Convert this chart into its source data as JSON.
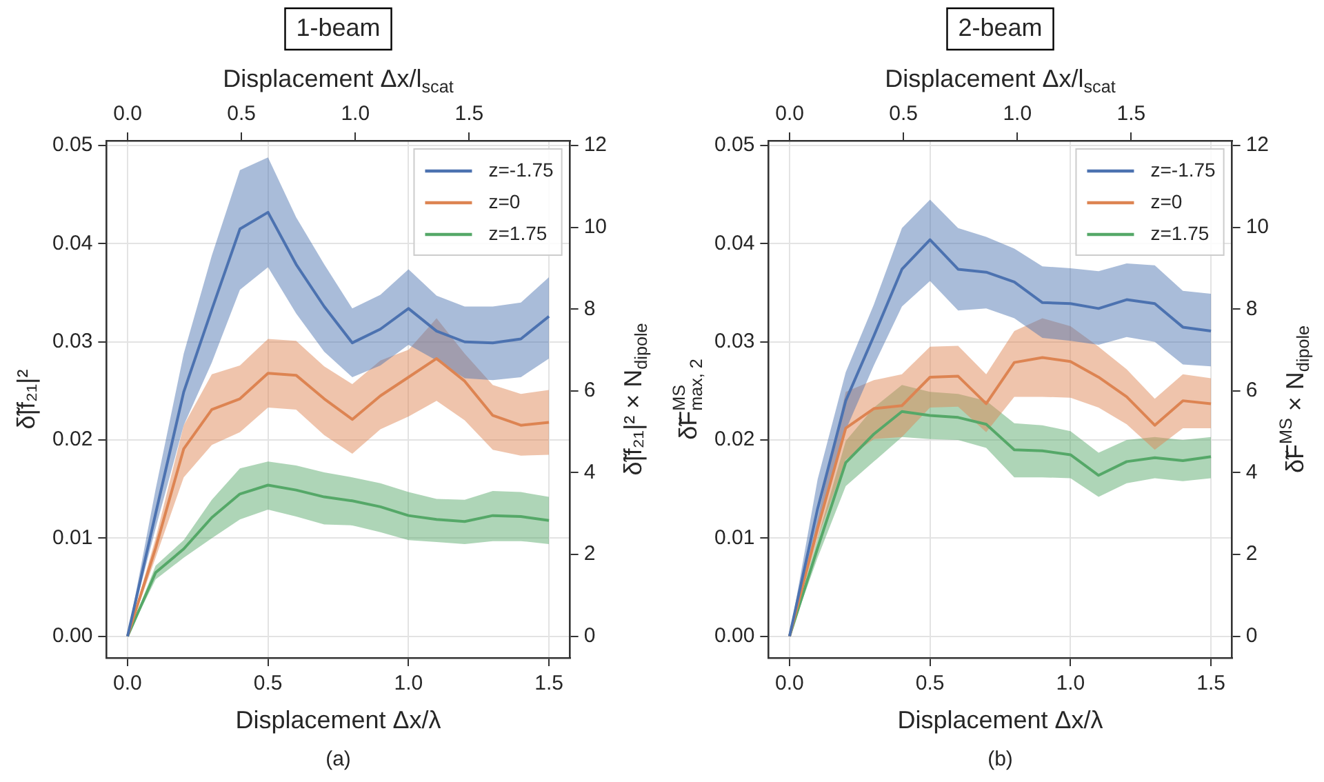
{
  "chart_data": [
    {
      "type": "line",
      "title": "1-beam",
      "xlabel": "Displacement Δx/λ",
      "x2label": "Displacement Δx/l$_{scat}$",
      "ylabel": "δ̃|f₂₁|²",
      "y2label": "δ̃|f₂₁|² × N$_{dipole}$",
      "x": [
        0,
        0.1,
        0.2,
        0.3,
        0.4,
        0.5,
        0.6,
        0.7,
        0.8,
        0.9,
        1.0,
        1.1,
        1.2,
        1.3,
        1.4,
        1.5
      ],
      "series": [
        {
          "name": "z=-1.75",
          "color": "#4c72b0",
          "values": [
            0,
            0.0125,
            0.0249,
            0.0333,
            0.0415,
            0.0432,
            0.0379,
            0.0336,
            0.0299,
            0.0313,
            0.0334,
            0.0311,
            0.03,
            0.0299,
            0.0303,
            0.0326
          ],
          "lower": [
            0,
            0.011,
            0.0215,
            0.0279,
            0.0353,
            0.0376,
            0.0329,
            0.029,
            0.0264,
            0.0276,
            0.0297,
            0.0281,
            0.0263,
            0.0261,
            0.0264,
            0.0283
          ],
          "upper": [
            0,
            0.015,
            0.0288,
            0.0388,
            0.0475,
            0.0488,
            0.0427,
            0.0379,
            0.0334,
            0.0348,
            0.0374,
            0.0347,
            0.0336,
            0.0336,
            0.034,
            0.0366
          ]
        },
        {
          "name": "z=0",
          "color": "#dd8452",
          "values": [
            0,
            0.009,
            0.0191,
            0.0231,
            0.0242,
            0.0268,
            0.0266,
            0.0242,
            0.0221,
            0.0245,
            0.0264,
            0.0283,
            0.026,
            0.0225,
            0.0215,
            0.0218
          ],
          "lower": [
            0,
            0.008,
            0.0162,
            0.0195,
            0.0208,
            0.0233,
            0.0231,
            0.0205,
            0.0186,
            0.0211,
            0.0224,
            0.024,
            0.022,
            0.019,
            0.0184,
            0.0185
          ],
          "upper": [
            0,
            0.01,
            0.0215,
            0.0267,
            0.0276,
            0.0303,
            0.0301,
            0.0275,
            0.0257,
            0.0281,
            0.0292,
            0.0324,
            0.0288,
            0.0256,
            0.0247,
            0.0251
          ]
        },
        {
          "name": "z=1.75",
          "color": "#55a868",
          "values": [
            0,
            0.0065,
            0.0089,
            0.0121,
            0.0145,
            0.0154,
            0.0149,
            0.0142,
            0.0138,
            0.0132,
            0.0123,
            0.0119,
            0.0117,
            0.0123,
            0.0122,
            0.0118
          ],
          "lower": [
            0,
            0.0058,
            0.008,
            0.01,
            0.0119,
            0.0129,
            0.0122,
            0.0114,
            0.0113,
            0.0106,
            0.0098,
            0.0096,
            0.0094,
            0.0097,
            0.0097,
            0.0094
          ],
          "upper": [
            0,
            0.0072,
            0.0098,
            0.0139,
            0.0171,
            0.0178,
            0.0174,
            0.0167,
            0.0162,
            0.0156,
            0.0147,
            0.014,
            0.0139,
            0.0148,
            0.0147,
            0.0142
          ]
        }
      ],
      "xlim": [
        -0.075,
        1.575
      ],
      "xticks": [
        {
          "value": 0,
          "label": "0.0"
        },
        {
          "value": 0.5,
          "label": "0.5"
        },
        {
          "value": 1,
          "label": "1.0"
        },
        {
          "value": 1.5,
          "label": "1.5"
        }
      ],
      "x2lim": [
        -0.093,
        1.943
      ],
      "x2ticks": [
        {
          "value": 0,
          "label": "0.0"
        },
        {
          "value": 0.5,
          "label": "0.5"
        },
        {
          "value": 1,
          "label": "1.0"
        },
        {
          "value": 1.5,
          "label": "1.5"
        }
      ],
      "ylim": [
        -0.0022,
        0.0505
      ],
      "yticks": [
        {
          "value": 0,
          "label": "0.00"
        },
        {
          "value": 0.01,
          "label": "0.01"
        },
        {
          "value": 0.02,
          "label": "0.02"
        },
        {
          "value": 0.03,
          "label": "0.03"
        },
        {
          "value": 0.04,
          "label": "0.04"
        },
        {
          "value": 0.05,
          "label": "0.05"
        }
      ],
      "y2lim": [
        -0.53,
        12.12
      ],
      "y2ticks": [
        0,
        2,
        4,
        6,
        8,
        10,
        12
      ],
      "grid": true,
      "legend": "top right",
      "marker": "none",
      "line_style": "solid",
      "annotations": [
        "(a)"
      ]
    },
    {
      "type": "line",
      "title": "2-beam",
      "xlabel": "Displacement Δx/λ",
      "x2label": "Displacement Δx/l$_{scat}$",
      "ylabel": "δ̃F$_{max, 2}$$^{MS}$",
      "y2label": "δ̃F$^{MS}$ × N$_{dipole}$",
      "x": [
        0,
        0.1,
        0.2,
        0.3,
        0.4,
        0.5,
        0.6,
        0.7,
        0.8,
        0.9,
        1.0,
        1.1,
        1.2,
        1.3,
        1.4,
        1.5
      ],
      "series": [
        {
          "name": "z=-1.75",
          "color": "#4c72b0",
          "values": [
            0,
            0.013,
            0.024,
            0.0306,
            0.0374,
            0.0404,
            0.0374,
            0.0371,
            0.0361,
            0.034,
            0.0339,
            0.0334,
            0.0343,
            0.0339,
            0.0315,
            0.0311
          ],
          "lower": [
            0,
            0.011,
            0.021,
            0.0276,
            0.0336,
            0.0362,
            0.0332,
            0.0334,
            0.0324,
            0.0304,
            0.0301,
            0.0297,
            0.0305,
            0.03,
            0.0277,
            0.0275
          ],
          "upper": [
            0,
            0.016,
            0.0269,
            0.0338,
            0.0416,
            0.0445,
            0.0416,
            0.0407,
            0.0395,
            0.0377,
            0.0375,
            0.0372,
            0.038,
            0.0378,
            0.0352,
            0.0349
          ]
        },
        {
          "name": "z=0",
          "color": "#dd8452",
          "values": [
            0,
            0.011,
            0.0212,
            0.0232,
            0.0235,
            0.0264,
            0.0265,
            0.0237,
            0.0279,
            0.0284,
            0.028,
            0.0264,
            0.0244,
            0.0215,
            0.024,
            0.0237
          ],
          "lower": [
            0,
            0.01,
            0.018,
            0.0201,
            0.0203,
            0.0233,
            0.0234,
            0.0208,
            0.0244,
            0.0244,
            0.0243,
            0.0233,
            0.0216,
            0.019,
            0.0212,
            0.0212
          ],
          "upper": [
            0,
            0.012,
            0.0249,
            0.0261,
            0.0267,
            0.0295,
            0.0296,
            0.0267,
            0.0311,
            0.0324,
            0.0316,
            0.0295,
            0.0272,
            0.0242,
            0.0267,
            0.0263
          ]
        },
        {
          "name": "z=1.75",
          "color": "#55a868",
          "values": [
            0,
            0.009,
            0.0177,
            0.0206,
            0.0229,
            0.0225,
            0.0223,
            0.0216,
            0.019,
            0.0189,
            0.0185,
            0.0164,
            0.0178,
            0.0182,
            0.0179,
            0.0183
          ],
          "lower": [
            0,
            0.008,
            0.0153,
            0.0178,
            0.0203,
            0.0201,
            0.02,
            0.0192,
            0.0162,
            0.0162,
            0.0161,
            0.0142,
            0.0156,
            0.0161,
            0.0158,
            0.0161
          ],
          "upper": [
            0,
            0.01,
            0.0199,
            0.0233,
            0.0256,
            0.0249,
            0.0247,
            0.024,
            0.0217,
            0.0215,
            0.0209,
            0.0187,
            0.02,
            0.0203,
            0.02,
            0.0203
          ]
        }
      ],
      "xlim": [
        -0.075,
        1.575
      ],
      "xticks": [
        {
          "value": 0,
          "label": "0.0"
        },
        {
          "value": 0.5,
          "label": "0.5"
        },
        {
          "value": 1,
          "label": "1.0"
        },
        {
          "value": 1.5,
          "label": "1.5"
        }
      ],
      "x2lim": [
        -0.093,
        1.943
      ],
      "x2ticks": [
        {
          "value": 0,
          "label": "0.0"
        },
        {
          "value": 0.5,
          "label": "0.5"
        },
        {
          "value": 1,
          "label": "1.0"
        },
        {
          "value": 1.5,
          "label": "1.5"
        }
      ],
      "ylim": [
        -0.0022,
        0.0505
      ],
      "yticks": [
        {
          "value": 0,
          "label": "0.00"
        },
        {
          "value": 0.01,
          "label": "0.01"
        },
        {
          "value": 0.02,
          "label": "0.02"
        },
        {
          "value": 0.03,
          "label": "0.03"
        },
        {
          "value": 0.04,
          "label": "0.04"
        },
        {
          "value": 0.05,
          "label": "0.05"
        }
      ],
      "y2lim": [
        -0.53,
        12.12
      ],
      "y2ticks": [
        0,
        2,
        4,
        6,
        8,
        10,
        12
      ],
      "grid": true,
      "legend": "top right",
      "marker": "none",
      "line_style": "solid",
      "annotations": [
        "(b)"
      ]
    }
  ]
}
